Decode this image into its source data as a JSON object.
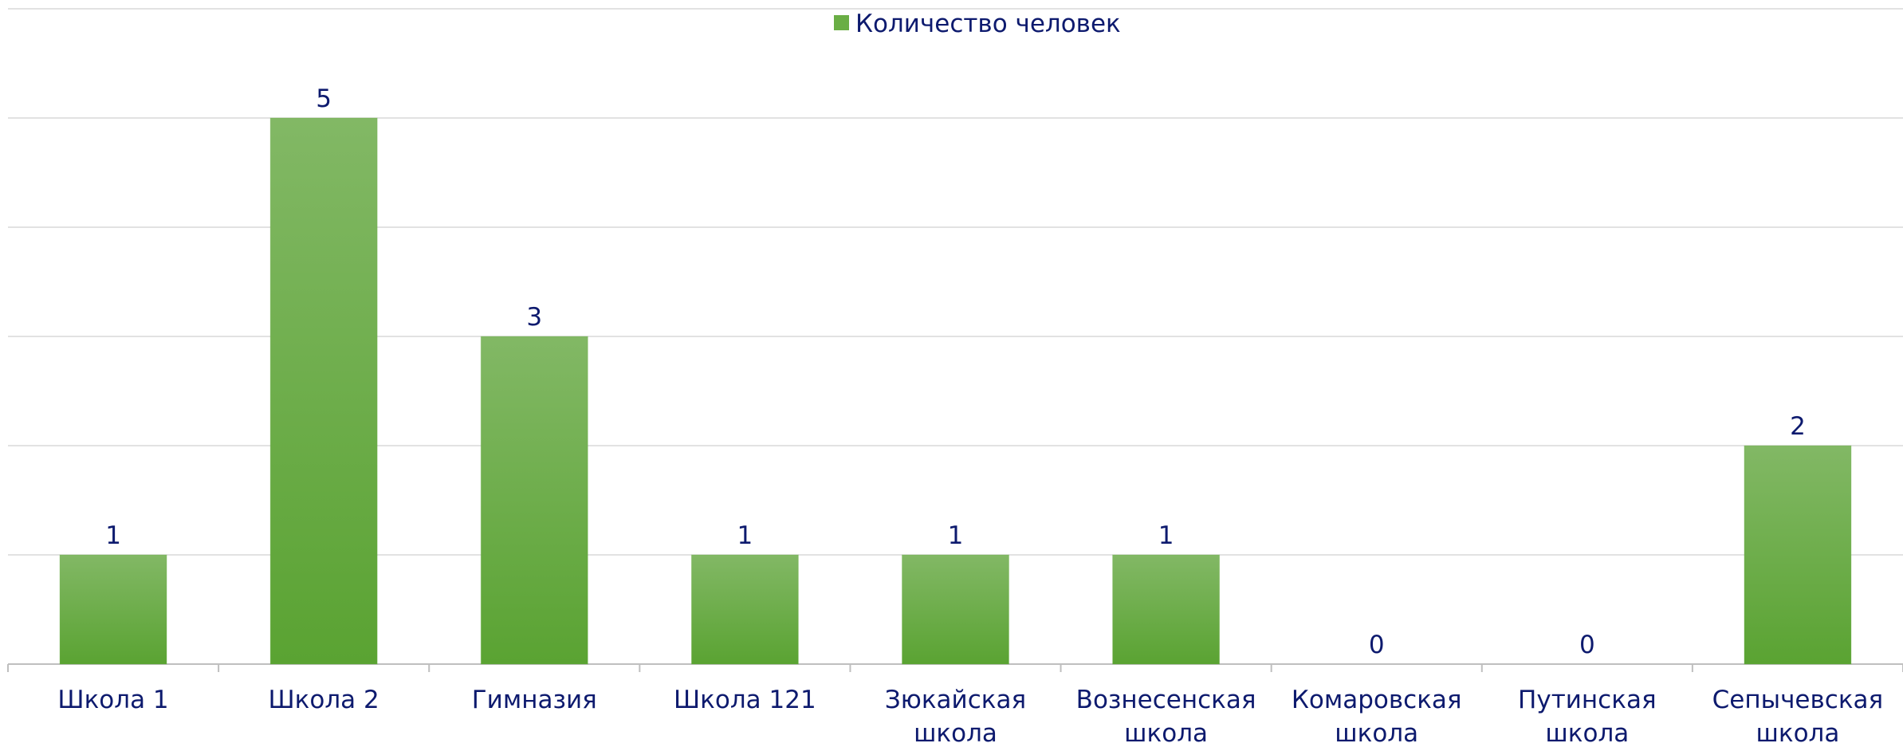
{
  "chart_data": {
    "type": "bar",
    "categories": [
      "Школа 1",
      "Школа 2",
      "Гимназия",
      "Школа 121",
      "Зюкайская школа",
      "Вознесенская школа",
      "Комаровская школа",
      "Путинская школа",
      "Сепычевская школа"
    ],
    "series": [
      {
        "name": "Количество человек",
        "color": "#6aae45",
        "values": [
          1,
          5,
          3,
          1,
          1,
          1,
          0,
          0,
          2
        ]
      }
    ],
    "ylim": [
      0,
      6
    ],
    "yticks": [
      0,
      1,
      2,
      3,
      4,
      5,
      6
    ],
    "grid": true,
    "legend": "top"
  }
}
